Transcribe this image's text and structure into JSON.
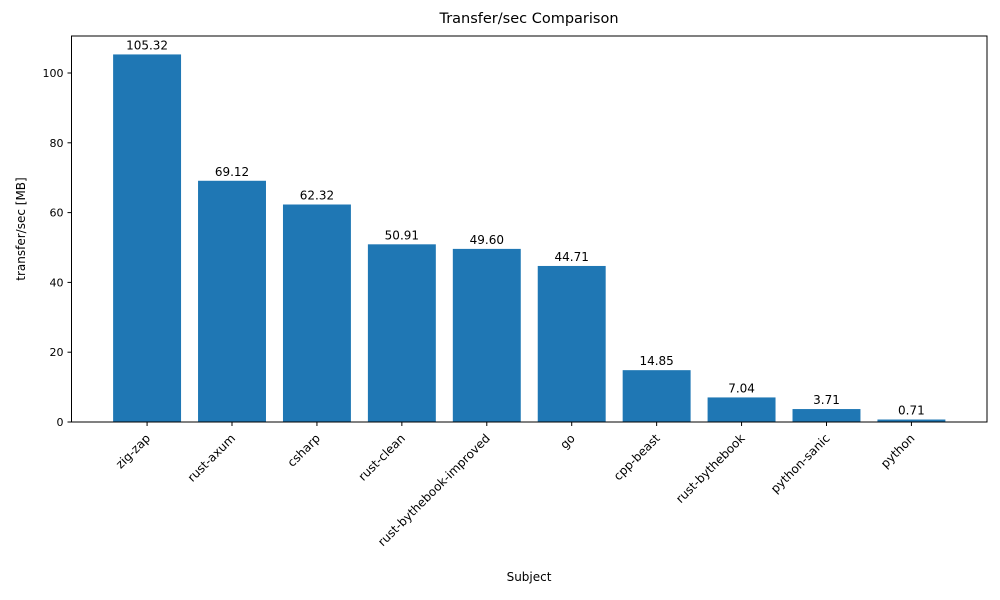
{
  "figure": {
    "background_color": "#ffffff",
    "text_color": "#000000",
    "axis_color": "#000000"
  },
  "chart_data": {
    "type": "bar",
    "title": "Transfer/sec Comparison",
    "xlabel": "Subject",
    "ylabel": "transfer/sec [MB]",
    "categories": [
      "zig-zap",
      "rust-axum",
      "csharp",
      "rust-clean",
      "rust-bythebook-improved",
      "go",
      "cpp-beast",
      "rust-bythebook",
      "python-sanic",
      "python"
    ],
    "values": [
      105.32,
      69.12,
      62.32,
      50.91,
      49.6,
      44.71,
      14.85,
      7.04,
      3.71,
      0.71
    ],
    "value_labels": [
      "105.32",
      "69.12",
      "62.32",
      "50.91",
      "49.60",
      "44.71",
      "14.85",
      "7.04",
      "3.71",
      "0.71"
    ],
    "yticks": [
      0,
      20,
      40,
      60,
      80,
      100
    ],
    "ylim": [
      0,
      110.6
    ],
    "bar_color": "#1f77b4",
    "bar_width_ratio": 0.8,
    "x_tick_rotation": 45,
    "grid": false,
    "legend": null
  }
}
